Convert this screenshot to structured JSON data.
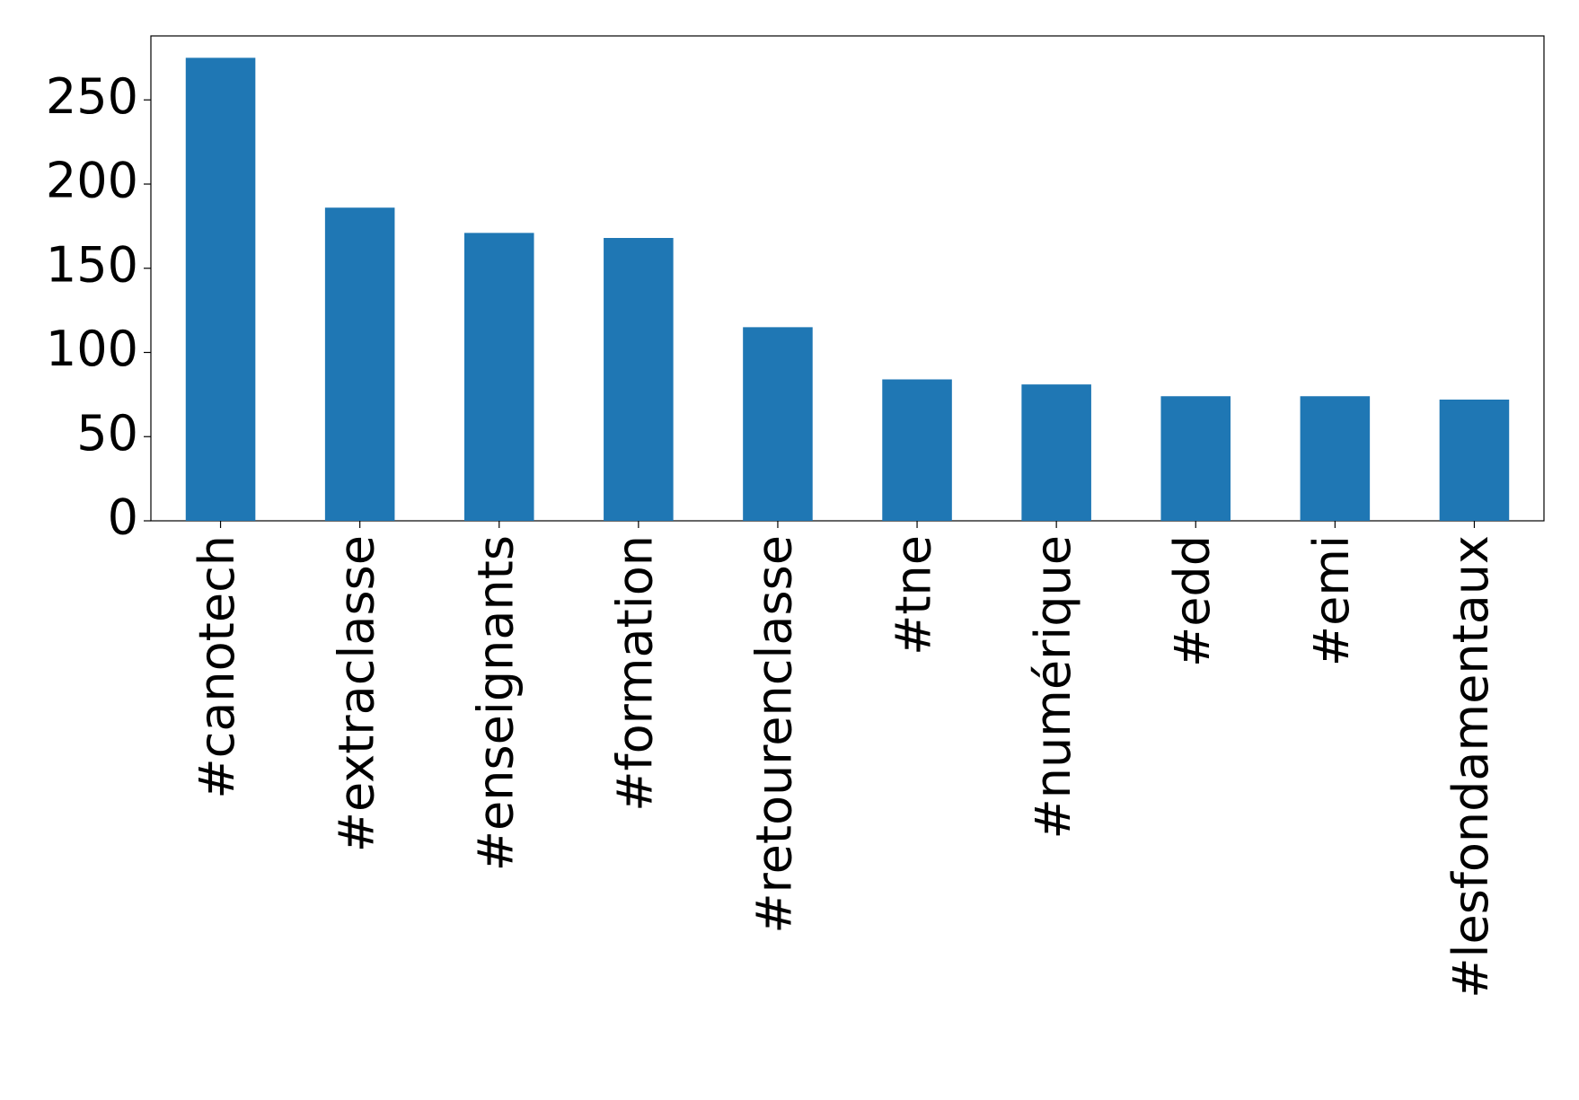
{
  "chart_data": {
    "type": "bar",
    "categories": [
      "#canotech",
      "#extraclasse",
      "#enseignants",
      "#formation",
      "#retourenclasse",
      "#tne",
      "#numérique",
      "#edd",
      "#emi",
      "#lesfondamentaux"
    ],
    "values": [
      275,
      186,
      171,
      168,
      115,
      84,
      81,
      74,
      74,
      72
    ],
    "color": "#1f77b4",
    "ylim": [
      0,
      288
    ],
    "yticks": [
      0,
      50,
      100,
      150,
      200,
      250
    ],
    "grid": false
  }
}
